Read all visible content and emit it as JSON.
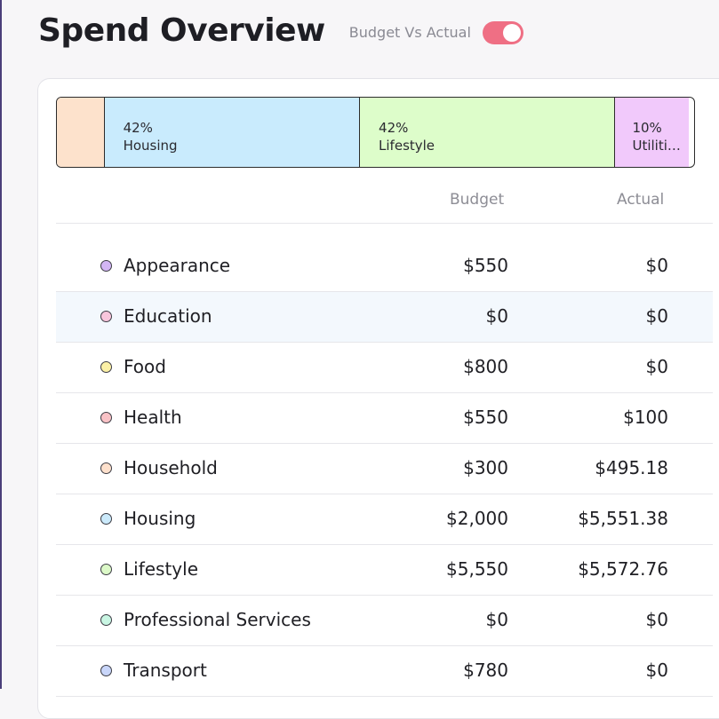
{
  "header": {
    "title": "Spend Overview",
    "toggle_label": "Budget Vs Actual",
    "toggle_on": true,
    "toggle_color": "#ef6f84"
  },
  "breakdown_bar": [
    {
      "percent": "",
      "label": "",
      "share": 0.05,
      "color": "#fde2cc"
    },
    {
      "percent": "42%",
      "label": "Housing",
      "share": 0.42,
      "color": "#c9ebfd"
    },
    {
      "percent": "42%",
      "label": "Lifestyle",
      "share": 0.42,
      "color": "#ddfdca"
    },
    {
      "percent": "10%",
      "label": "Utiliti…",
      "share": 0.1,
      "color": "#f1c9fb"
    }
  ],
  "table": {
    "columns": {
      "budget": "Budget",
      "actual": "Actual"
    },
    "rows": [
      {
        "category": "Appearance",
        "budget": "$550",
        "actual": "$0",
        "dot": "#d3b6f4"
      },
      {
        "category": "Education",
        "budget": "$0",
        "actual": "$0",
        "dot": "#f9c6dc"
      },
      {
        "category": "Food",
        "budget": "$800",
        "actual": "$0",
        "dot": "#fbf0a6"
      },
      {
        "category": "Health",
        "budget": "$550",
        "actual": "$100",
        "dot": "#f9c2c6"
      },
      {
        "category": "Household",
        "budget": "$300",
        "actual": "$495.18",
        "dot": "#fde0cc"
      },
      {
        "category": "Housing",
        "budget": "$2,000",
        "actual": "$5,551.38",
        "dot": "#cbeafb"
      },
      {
        "category": "Lifestyle",
        "budget": "$5,550",
        "actual": "$5,572.76",
        "dot": "#dcf9c8"
      },
      {
        "category": "Professional Services",
        "budget": "$0",
        "actual": "$0",
        "dot": "#c9f6e3"
      },
      {
        "category": "Transport",
        "budget": "$780",
        "actual": "$0",
        "dot": "#c9d6fa"
      }
    ]
  }
}
